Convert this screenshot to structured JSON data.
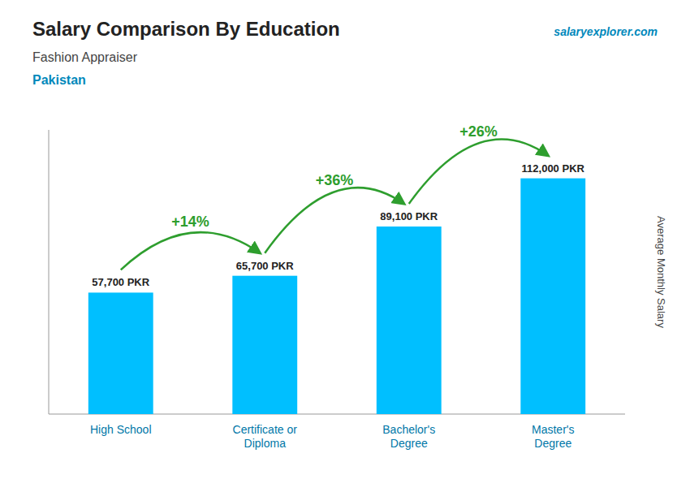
{
  "chart_data": {
    "type": "bar",
    "title": "Salary Comparison By Education",
    "subtitle": "Fashion Appraiser",
    "y_label": "Average Monthly Salary",
    "categories": [
      "High School",
      "Certificate or\nDiploma",
      "Bachelor's\nDegree",
      "Master's\nDegree"
    ],
    "values": [
      57700,
      65700,
      89100,
      112000
    ],
    "value_labels": [
      "57,700 PKR",
      "65,700 PKR",
      "89,100 PKR",
      "112,000 PKR"
    ],
    "data_labels": true,
    "color": "#00BFFF",
    "ylim": [
      0,
      135000
    ],
    "tick_labels": "x",
    "annotations": [
      {
        "text": "Pakistan"
      },
      {
        "text": "salaryexplorer.com"
      },
      {
        "text": "+14%",
        "between": [
          0,
          1
        ]
      },
      {
        "text": "+36%",
        "between": [
          1,
          2
        ]
      },
      {
        "text": "+26%",
        "between": [
          2,
          3
        ]
      }
    ]
  }
}
